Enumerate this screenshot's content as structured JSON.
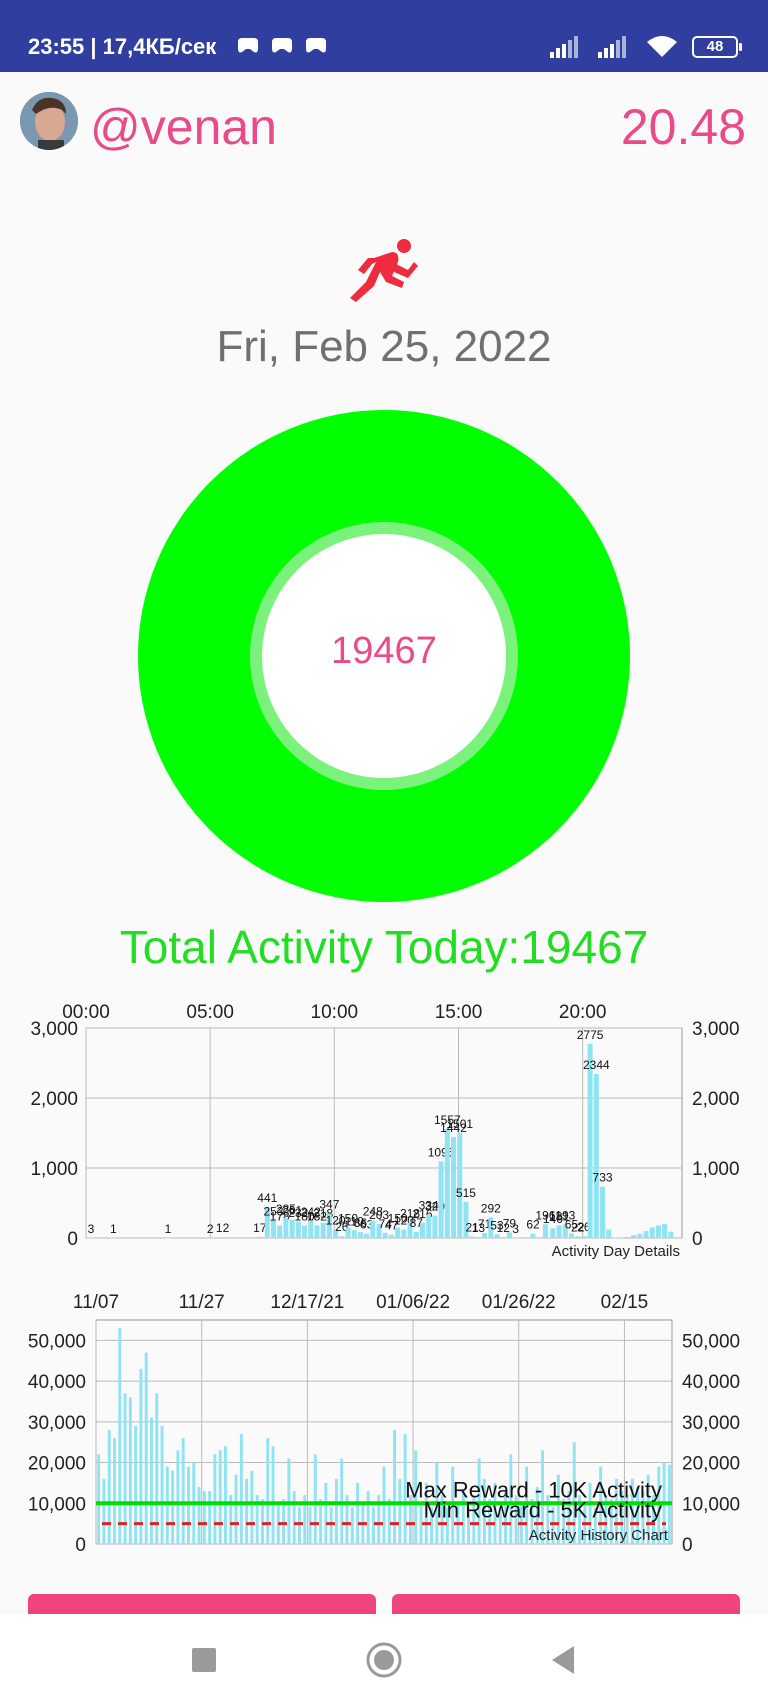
{
  "status_bar": {
    "time_speed": "23:55 | 17,4КБ/сек",
    "battery": "48",
    "icons": [
      "game-controller-icon",
      "game-controller-icon",
      "game-controller-icon",
      "signal-icon",
      "signal-icon",
      "wifi-icon",
      "battery-icon"
    ]
  },
  "header": {
    "username": "@venan",
    "balance": "20.48"
  },
  "activity": {
    "icon": "running-person-icon",
    "date": "Fri, Feb 25, 2022",
    "donut_value": "19467",
    "total_label": "Total Activity Today:19467"
  },
  "colors": {
    "accent_pink": "#e84a8a",
    "status_bar": "#303f9f",
    "donut_green": "#00ff00",
    "total_green": "#22dd22",
    "bar_cyan": "#8fe3f3",
    "button_pink": "#f0447e"
  },
  "chart_data": [
    {
      "type": "bar",
      "title": "Activity Day Details",
      "x_ticks": [
        "00:00",
        "05:00",
        "10:00",
        "15:00",
        "20:00"
      ],
      "x_tick_hours": [
        0,
        5,
        10,
        15,
        20
      ],
      "y_ticks": [
        "0",
        "1,000",
        "2,000",
        "3,000"
      ],
      "y_tick_values": [
        0,
        1000,
        2000,
        3000
      ],
      "ylim": [
        0,
        3000
      ],
      "grid": true,
      "hours": [
        0.2,
        1.1,
        3.3,
        5.0,
        5.5,
        7.0,
        7.3,
        7.55,
        7.8,
        8.05,
        8.3,
        8.55,
        8.8,
        9.05,
        9.3,
        9.55,
        9.8,
        10.05,
        10.3,
        10.55,
        10.8,
        11.05,
        11.3,
        11.55,
        11.8,
        12.05,
        12.3,
        12.55,
        12.8,
        13.05,
        13.3,
        13.55,
        13.8,
        14.05,
        14.3,
        14.55,
        14.8,
        15.05,
        15.3,
        15.55,
        15.8,
        16.05,
        16.3,
        16.55,
        16.8,
        17.05,
        17.3,
        18.0,
        18.5,
        18.8,
        19.05,
        19.3,
        19.55,
        19.8,
        20.05,
        20.3,
        20.55,
        20.8,
        21.05,
        21.3,
        21.55,
        21.8,
        22.05,
        22.3,
        22.55,
        22.8,
        23.05,
        23.3,
        23.55
      ],
      "values": [
        3,
        1,
        1,
        2,
        12,
        17,
        441,
        253,
        178,
        285,
        261,
        232,
        180,
        242,
        182,
        218,
        347,
        120,
        26,
        150,
        110,
        86,
        63,
        248,
        203,
        74,
        47,
        150,
        120,
        218,
        87,
        216,
        334,
        320,
        1095,
        1557,
        1442,
        1501,
        515,
        21,
        13,
        71,
        292,
        53,
        12,
        79,
        3,
        62,
        196,
        140,
        181,
        193,
        65,
        22,
        26,
        2775,
        2344,
        733,
        120,
        3,
        8,
        15,
        40,
        60,
        100,
        150,
        180,
        200,
        90
      ],
      "labels": [
        "3",
        "1",
        "1",
        "2",
        "12",
        "17",
        "441",
        "253",
        "178",
        "285",
        "261",
        "232",
        "180",
        "242",
        "182",
        "218",
        "347",
        "120",
        "26",
        "150",
        "110",
        "86",
        "63",
        "248",
        "203",
        "74",
        "47",
        "150",
        "120",
        "218",
        "87",
        "216",
        "334",
        "320",
        "1095",
        "1557",
        "1442",
        "1501",
        "515",
        "21",
        "13",
        "71",
        "292",
        "53",
        "12",
        "79",
        "3",
        "62",
        "196",
        "140",
        "181",
        "193",
        "65",
        "22",
        "26",
        "2775",
        "2344",
        "733",
        "",
        "",
        "",
        "",
        "",
        "",
        "",
        "",
        "",
        "",
        ""
      ]
    },
    {
      "type": "bar",
      "title": "Activity History Chart",
      "x_ticks": [
        "11/07",
        "11/27",
        "12/17/21",
        "01/06/22",
        "01/26/22",
        "02/15"
      ],
      "x_tick_days": [
        0,
        20,
        40,
        60,
        80,
        100
      ],
      "y_ticks": [
        "0",
        "10,000",
        "20,000",
        "30,000",
        "40,000",
        "50,000"
      ],
      "y_tick_values": [
        0,
        10000,
        20000,
        30000,
        40000,
        50000
      ],
      "ylim": [
        0,
        55000
      ],
      "grid": true,
      "max_reward": {
        "label": "Max Reward - 10K Activity",
        "value": 10000
      },
      "min_reward": {
        "label": "Min Reward - 5K Activity",
        "value": 5000
      },
      "values": [
        22000,
        16000,
        28000,
        26000,
        53000,
        37000,
        36000,
        29000,
        43000,
        47000,
        31000,
        37000,
        29000,
        19000,
        18000,
        23000,
        26000,
        19000,
        20000,
        14000,
        13000,
        13000,
        22000,
        23000,
        24000,
        12000,
        17000,
        27000,
        16000,
        18000,
        12000,
        11000,
        26000,
        24000,
        10000,
        11000,
        21000,
        13000,
        9000,
        12000,
        9000,
        22000,
        11000,
        15000,
        9000,
        16000,
        21000,
        12000,
        9000,
        15000,
        10000,
        13000,
        9000,
        12000,
        19000,
        11000,
        28000,
        16000,
        27000,
        12000,
        23000,
        10000,
        15000,
        9000,
        20000,
        12000,
        9000,
        19000,
        10000,
        13000,
        9000,
        12000,
        21000,
        16000,
        11000,
        15000,
        9000,
        13000,
        22000,
        12000,
        10000,
        19000,
        11000,
        14000,
        23000,
        12000,
        9000,
        17000,
        11000,
        13000,
        25000,
        12000,
        10000,
        15000,
        9000,
        19000,
        12000,
        11000,
        16000,
        13000,
        12000,
        16000,
        14000,
        13000,
        17000,
        12000,
        19000,
        20000,
        19467
      ]
    }
  ],
  "buttons": {
    "left_label": "",
    "right_label": ""
  },
  "nav": {
    "icons": [
      "recent-apps-icon",
      "home-icon",
      "back-icon"
    ]
  }
}
